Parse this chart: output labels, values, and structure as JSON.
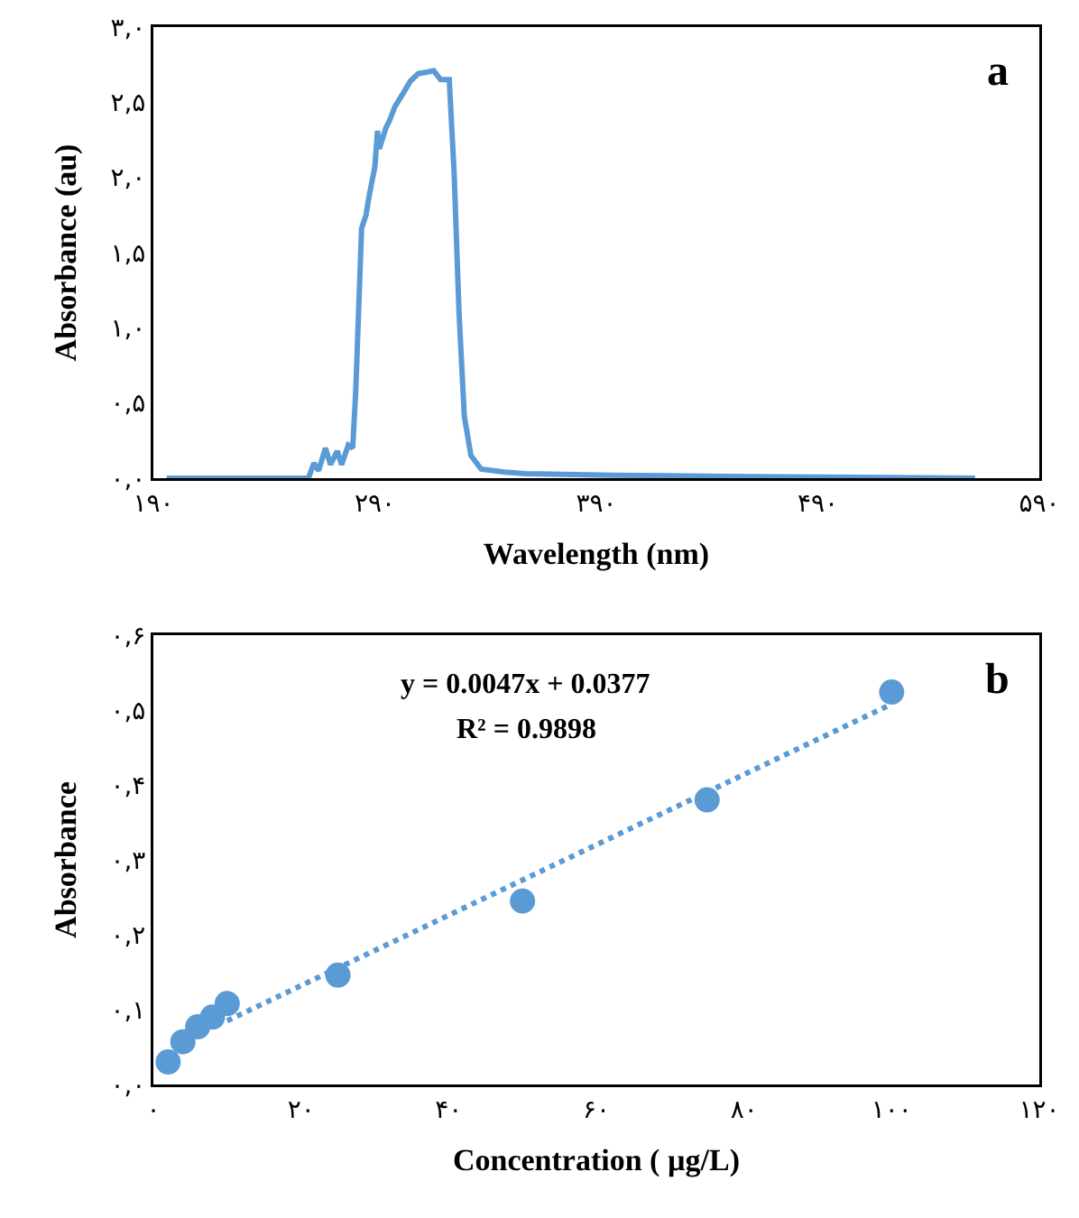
{
  "chart_data": [
    {
      "type": "line",
      "xlabel": "Wavelength (nm)",
      "ylabel": "Absorbance (au)",
      "annotations": [
        "a"
      ],
      "grid": false,
      "marker": "none",
      "line_style": "solid",
      "xlim": [
        190,
        590
      ],
      "xticks": [
        {
          "value": 190,
          "label": "۱۹۰"
        },
        {
          "value": 290,
          "label": "۲۹۰"
        },
        {
          "value": 390,
          "label": "۳۹۰"
        },
        {
          "value": 490,
          "label": "۴۹۰"
        },
        {
          "value": 590,
          "label": "۵۹۰"
        }
      ],
      "ylim": [
        0,
        3
      ],
      "yticks": [
        {
          "value": 0,
          "label": "۰,۰"
        },
        {
          "value": 0.5,
          "label": "۰,۵"
        },
        {
          "value": 1,
          "label": "۱,۰"
        },
        {
          "value": 1.5,
          "label": "۱,۵"
        },
        {
          "value": 2,
          "label": "۲,۰"
        },
        {
          "value": 2.5,
          "label": "۲,۵"
        },
        {
          "value": 3,
          "label": "۳,۰"
        }
      ],
      "series": [
        {
          "color": "#5b9bd5",
          "x": [
            196,
            260,
            262.5,
            264.6,
            267.7,
            270,
            273,
            275,
            278,
            280,
            281.4,
            284,
            286,
            287.6,
            290,
            291.2,
            292,
            295,
            296.7,
            299,
            302.8,
            306,
            309.6,
            313.5,
            316.6,
            319.7,
            323.6,
            325.8,
            328,
            330.4,
            333.4,
            338,
            348.7,
            358,
            397.6,
            458.8,
            561
          ],
          "values": [
            0,
            0,
            0.1,
            0.05,
            0.2,
            0.09,
            0.18,
            0.09,
            0.22,
            0.2,
            0.59,
            1.66,
            1.75,
            1.89,
            2.07,
            2.31,
            2.19,
            2.33,
            2.38,
            2.47,
            2.56,
            2.64,
            2.69,
            2.7,
            2.71,
            2.65,
            2.65,
            2.03,
            1.1,
            0.41,
            0.15,
            0.06,
            0.04,
            0.03,
            0.02,
            0.01,
            0
          ]
        }
      ]
    },
    {
      "type": "scatter",
      "xlabel": "Concentration ( µg/L)",
      "ylabel": "Absorbance",
      "annotations": [
        "b",
        "y = 0.0047x + 0.0377",
        "R² = 0.9898"
      ],
      "grid": false,
      "xlim": [
        0,
        120
      ],
      "xticks": [
        {
          "value": 0,
          "label": "۰"
        },
        {
          "value": 20,
          "label": "۲۰"
        },
        {
          "value": 40,
          "label": "۴۰"
        },
        {
          "value": 60,
          "label": "۶۰"
        },
        {
          "value": 80,
          "label": "۸۰"
        },
        {
          "value": 100,
          "label": "۱۰۰"
        },
        {
          "value": 120,
          "label": "۱۲۰"
        }
      ],
      "ylim": [
        0,
        0.6
      ],
      "yticks": [
        {
          "value": 0,
          "label": "۰,۰"
        },
        {
          "value": 0.1,
          "label": "۰,۱"
        },
        {
          "value": 0.2,
          "label": "۰,۲"
        },
        {
          "value": 0.3,
          "label": "۰,۳"
        },
        {
          "value": 0.4,
          "label": "۰,۴"
        },
        {
          "value": 0.5,
          "label": "۰,۵"
        },
        {
          "value": 0.6,
          "label": "۰,۶"
        }
      ],
      "series": [
        {
          "type": "line",
          "line_style": "dotted",
          "marker": "none",
          "color": "#5b9bd5",
          "x": [
            10,
            100
          ],
          "values": [
            0.085,
            0.508
          ]
        },
        {
          "type": "scatter",
          "marker": "circle",
          "color": "#5b9bd5",
          "x": [
            2,
            4,
            6,
            8,
            10,
            25,
            50,
            75,
            100
          ],
          "values": [
            0.03,
            0.057,
            0.077,
            0.09,
            0.108,
            0.146,
            0.245,
            0.38,
            0.524
          ]
        }
      ]
    }
  ]
}
